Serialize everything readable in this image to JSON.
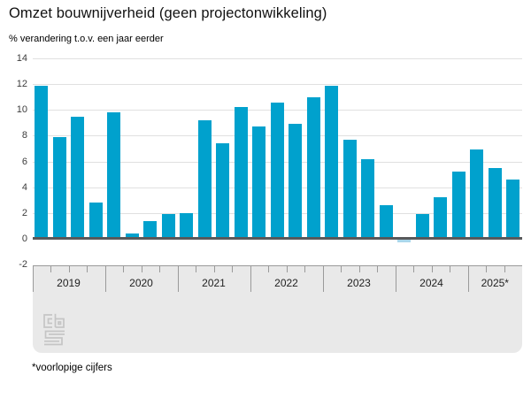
{
  "title": "Omzet bouwnijverheid (geen projectonwikkeling)",
  "subtitle": "% verandering t.o.v. een jaar eerder",
  "footnote": "*voorlopige cijfers",
  "logo_name": "cbs-logo",
  "colors": {
    "bar": "#00a1cd",
    "bar_negative": "#aad7eb",
    "gridline": "#e0e0e0",
    "zero_line": "#58595b",
    "axis_band_bg": "#e9e9e9",
    "tick": "#9a9a9a",
    "logo": "#c5c5c5"
  },
  "chart_data": {
    "type": "bar",
    "title": "Omzet bouwnijverheid (geen projectonwikkeling)",
    "ylabel": "% verandering t.o.v. een jaar eerder",
    "xlabel": "",
    "ylim": [
      -2,
      14
    ],
    "yticks": [
      14,
      12,
      10,
      8,
      6,
      4,
      2,
      0,
      -2
    ],
    "grid": true,
    "legend": false,
    "series_unit": "% change year-on-year, per quarter",
    "years": [
      {
        "label": "2019",
        "values": [
          11.9,
          7.9,
          9.5,
          2.8
        ]
      },
      {
        "label": "2020",
        "values": [
          9.8,
          0.4,
          1.4,
          1.9
        ]
      },
      {
        "label": "2021",
        "values": [
          2.0,
          9.2,
          7.4,
          10.2
        ]
      },
      {
        "label": "2022",
        "values": [
          8.7,
          10.6,
          8.9,
          11.0
        ]
      },
      {
        "label": "2023",
        "values": [
          11.9,
          7.7,
          6.2,
          2.6
        ]
      },
      {
        "label": "2024",
        "values": [
          -0.3,
          1.9,
          3.2,
          5.2
        ]
      },
      {
        "label": "2025*",
        "values": [
          6.9,
          5.5,
          4.6
        ]
      }
    ]
  }
}
